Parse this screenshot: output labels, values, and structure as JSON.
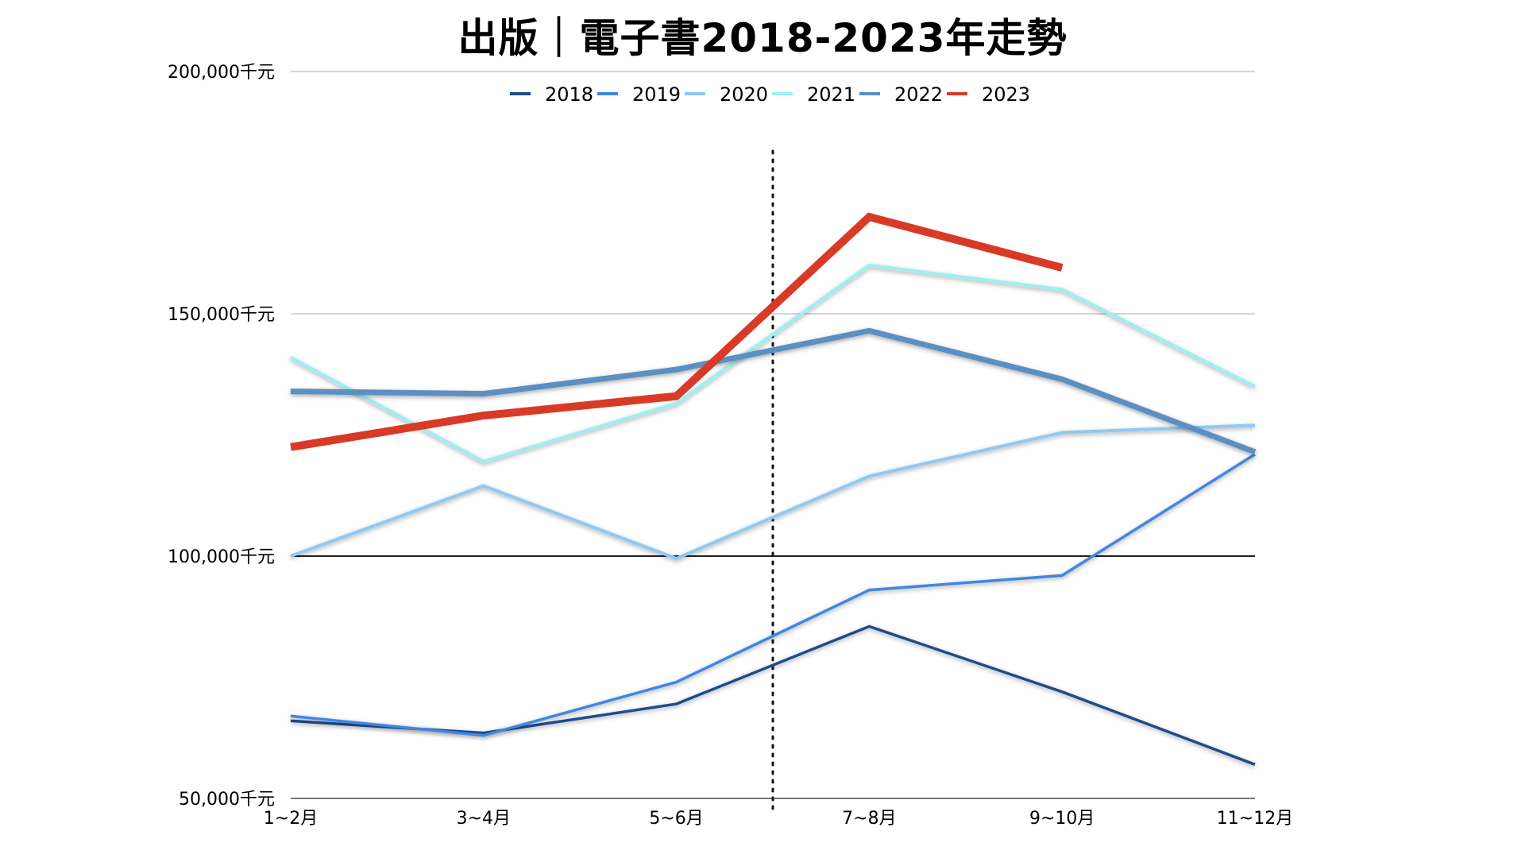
{
  "chart_data": {
    "type": "line",
    "title": "出版｜電子書2018-2023年走勢",
    "xlabel": "",
    "ylabel": "",
    "categories": [
      "1~2月",
      "3~4月",
      "5~6月",
      "7~8月",
      "9~10月",
      "11~12月"
    ],
    "ylim": [
      50000,
      200000
    ],
    "yticks": [
      {
        "value": 50000,
        "label": "50,000千元"
      },
      {
        "value": 100000,
        "label": "100,000千元"
      },
      {
        "value": 150000,
        "label": "150,000千元"
      },
      {
        "value": 200000,
        "label": "200,000千元"
      }
    ],
    "grid": true,
    "legend_position": "top-center",
    "series": [
      {
        "name": "2018",
        "color": "#1f4e8c",
        "values": [
          66000,
          63500,
          69500,
          85500,
          72000,
          57000
        ]
      },
      {
        "name": "2019",
        "color": "#3f86e3",
        "values": [
          67000,
          63000,
          74000,
          93000,
          96000,
          121000
        ]
      },
      {
        "name": "2020",
        "color": "#8ec9f2",
        "values": [
          100000,
          114500,
          99500,
          116500,
          125500,
          127000
        ]
      },
      {
        "name": "2021",
        "color": "#9bf0f0",
        "values": [
          141000,
          119500,
          131500,
          160000,
          155000,
          135000
        ]
      },
      {
        "name": "2022",
        "color": "#5b8fc2",
        "values": [
          134000,
          133500,
          138500,
          146500,
          136500,
          121500
        ]
      },
      {
        "name": "2023",
        "color": "#d93a26",
        "values": [
          122500,
          129000,
          133000,
          170000,
          159500,
          null
        ]
      }
    ],
    "divider_after_category_index": 2
  }
}
